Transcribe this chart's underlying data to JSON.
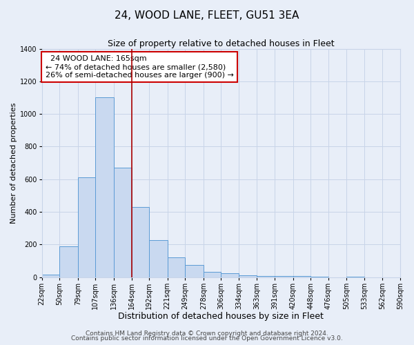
{
  "title": "24, WOOD LANE, FLEET, GU51 3EA",
  "subtitle": "Size of property relative to detached houses in Fleet",
  "xlabel": "Distribution of detached houses by size in Fleet",
  "ylabel": "Number of detached properties",
  "footer_line1": "Contains HM Land Registry data © Crown copyright and database right 2024.",
  "footer_line2": "Contains public sector information licensed under the Open Government Licence v3.0.",
  "annotation_line1": "24 WOOD LANE: 165sqm",
  "annotation_line2": "← 74% of detached houses are smaller (2,580)",
  "annotation_line3": "26% of semi-detached houses are larger (900) →",
  "bin_edges": [
    22,
    50,
    79,
    107,
    136,
    164,
    192,
    221,
    249,
    278,
    306,
    334,
    363,
    391,
    420,
    448,
    476,
    505,
    533,
    562,
    590
  ],
  "bin_heights": [
    15,
    190,
    610,
    1100,
    670,
    430,
    225,
    120,
    75,
    30,
    25,
    10,
    8,
    5,
    5,
    3,
    0,
    3,
    0,
    0
  ],
  "bar_color": "#c9d9f0",
  "bar_edge_color": "#5b9bd5",
  "vline_x": 164,
  "vline_color": "#aa0000",
  "ylim": [
    0,
    1400
  ],
  "yticks": [
    0,
    200,
    400,
    600,
    800,
    1000,
    1200,
    1400
  ],
  "grid_color": "#c8d4e8",
  "background_color": "#e8eef8",
  "annotation_box_edge_color": "#cc0000",
  "annotation_box_face_color": "white",
  "title_fontsize": 11,
  "subtitle_fontsize": 9,
  "xlabel_fontsize": 9,
  "ylabel_fontsize": 8,
  "tick_fontsize": 7,
  "annotation_fontsize": 8,
  "footer_fontsize": 6.5
}
